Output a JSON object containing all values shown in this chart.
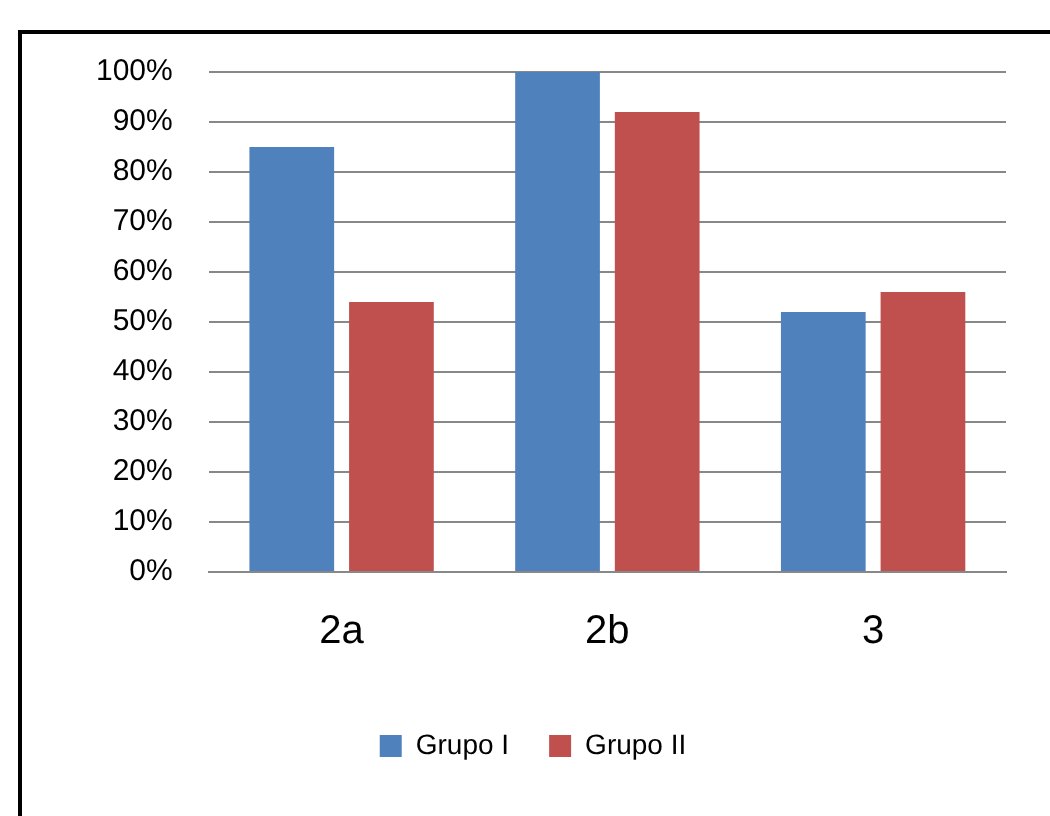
{
  "chart_data": {
    "type": "bar",
    "categories": [
      "2a",
      "2b",
      "3"
    ],
    "series": [
      {
        "name": "Grupo I",
        "color": "#4f81bd",
        "values": [
          85,
          100,
          52
        ]
      },
      {
        "name": "Grupo II",
        "color": "#c0504d",
        "values": [
          54,
          92,
          56
        ]
      }
    ],
    "ylim": [
      0,
      100
    ],
    "yticks": [
      {
        "value": 0,
        "label": "0%"
      },
      {
        "value": 10,
        "label": "10%"
      },
      {
        "value": 20,
        "label": "20%"
      },
      {
        "value": 30,
        "label": "30%"
      },
      {
        "value": 40,
        "label": "40%"
      },
      {
        "value": 50,
        "label": "50%"
      },
      {
        "value": 60,
        "label": "60%"
      },
      {
        "value": 70,
        "label": "70%"
      },
      {
        "value": 80,
        "label": "80%"
      },
      {
        "value": 90,
        "label": "90%"
      },
      {
        "value": 100,
        "label": "100%"
      }
    ],
    "grid": "y",
    "legend": "bottom"
  }
}
